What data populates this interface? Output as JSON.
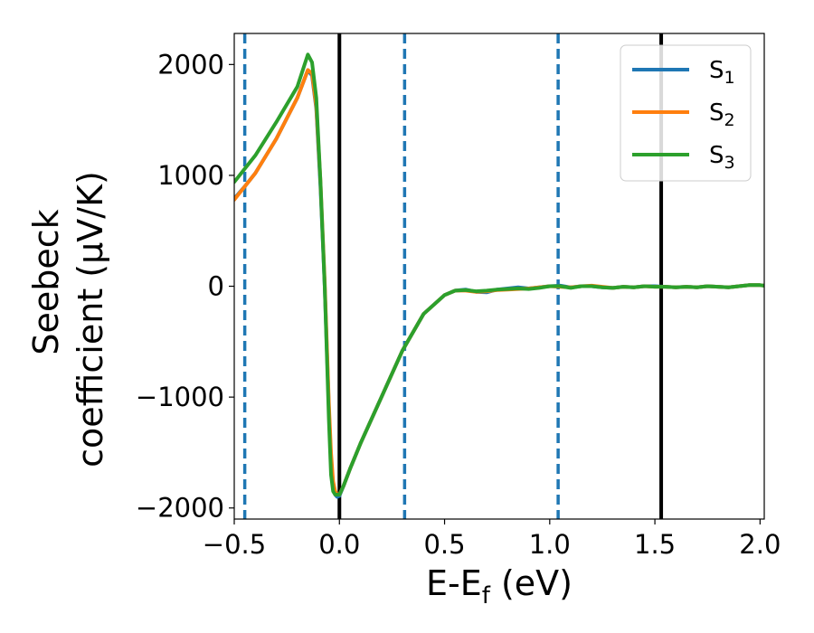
{
  "chart_data": {
    "type": "line",
    "xlabel": {
      "main": "E-E",
      "sub": "f",
      "unit": " (eV)"
    },
    "ylabel": {
      "line1": "Seebeck",
      "line2": "coefficient  (μV/K)"
    },
    "xlim": [
      -0.5,
      2.02
    ],
    "ylim": [
      -2100,
      2280
    ],
    "xticks": [
      -0.5,
      0.0,
      0.5,
      1.0,
      1.5,
      2.0
    ],
    "xtick_labels": [
      "−0.5",
      "0.0",
      "0.5",
      "1.0",
      "1.5",
      "2.0"
    ],
    "yticks": [
      -2000,
      -1000,
      0,
      1000,
      2000
    ],
    "ytick_labels": [
      "−2000",
      "−1000",
      "0",
      "1000",
      "2000"
    ],
    "grid": false,
    "legend_position": "top-right",
    "vlines": [
      {
        "x": -0.45,
        "style": "dashed",
        "color": "#1f77b4"
      },
      {
        "x": 0.0,
        "style": "solid",
        "color": "#000000"
      },
      {
        "x": 0.31,
        "style": "dashed",
        "color": "#1f77b4"
      },
      {
        "x": 1.04,
        "style": "dashed",
        "color": "#1f77b4"
      },
      {
        "x": 1.53,
        "style": "solid",
        "color": "#000000"
      }
    ],
    "series": [
      {
        "name": "S",
        "sub": "1",
        "color": "#1f77b4",
        "x": [
          -0.5,
          -0.45,
          -0.4,
          -0.3,
          -0.2,
          -0.15,
          -0.13,
          -0.11,
          -0.09,
          -0.07,
          -0.05,
          -0.04,
          -0.03,
          -0.02,
          -0.01,
          0.0,
          0.02,
          0.05,
          0.1,
          0.2,
          0.3,
          0.4,
          0.5,
          0.55,
          0.6,
          0.65,
          0.7,
          0.75,
          0.8,
          0.85,
          0.9,
          0.95,
          1.0,
          1.05,
          1.1,
          1.15,
          1.2,
          1.25,
          1.3,
          1.35,
          1.4,
          1.45,
          1.5,
          1.55,
          1.6,
          1.65,
          1.7,
          1.75,
          1.8,
          1.85,
          1.9,
          1.95,
          2.0,
          2.02
        ],
        "y": [
          790,
          900,
          1020,
          1330,
          1700,
          1950,
          1900,
          1600,
          900,
          0,
          -1100,
          -1550,
          -1800,
          -1880,
          -1900,
          -1890,
          -1800,
          -1650,
          -1420,
          -1000,
          -580,
          -250,
          -80,
          -40,
          -30,
          -50,
          -55,
          -30,
          -20,
          -10,
          -20,
          -10,
          0,
          5,
          -10,
          0,
          0,
          -10,
          -15,
          -5,
          -10,
          0,
          0,
          -5,
          -10,
          -5,
          -10,
          0,
          -5,
          -10,
          0,
          10,
          10,
          5
        ]
      },
      {
        "name": "S",
        "sub": "2",
        "color": "#ff7f0e",
        "x": [
          -0.5,
          -0.45,
          -0.4,
          -0.3,
          -0.2,
          -0.15,
          -0.13,
          -0.11,
          -0.09,
          -0.07,
          -0.05,
          -0.04,
          -0.03,
          -0.02,
          -0.01,
          0.0,
          0.02,
          0.05,
          0.1,
          0.2,
          0.3,
          0.4,
          0.5,
          0.55,
          0.6,
          0.65,
          0.7,
          0.75,
          0.8,
          0.85,
          0.9,
          0.95,
          1.0,
          1.05,
          1.1,
          1.15,
          1.2,
          1.25,
          1.3,
          1.35,
          1.4,
          1.45,
          1.5,
          1.55,
          1.6,
          1.65,
          1.7,
          1.75,
          1.8,
          1.85,
          1.9,
          1.95,
          2.0,
          2.02
        ],
        "y": [
          780,
          900,
          1020,
          1330,
          1700,
          1950,
          1920,
          1620,
          950,
          50,
          -1050,
          -1500,
          -1760,
          -1850,
          -1880,
          -1880,
          -1800,
          -1650,
          -1420,
          -1000,
          -580,
          -250,
          -80,
          -40,
          -40,
          -50,
          -45,
          -35,
          -30,
          -25,
          -20,
          -10,
          0,
          -5,
          -10,
          0,
          5,
          -5,
          -15,
          -5,
          -10,
          0,
          -5,
          -5,
          -10,
          -5,
          -10,
          0,
          -5,
          -10,
          0,
          10,
          10,
          5
        ]
      },
      {
        "name": "S",
        "sub": "3",
        "color": "#2ca02c",
        "x": [
          -0.5,
          -0.45,
          -0.4,
          -0.3,
          -0.2,
          -0.15,
          -0.13,
          -0.11,
          -0.09,
          -0.07,
          -0.05,
          -0.04,
          -0.03,
          -0.02,
          -0.01,
          0.0,
          0.02,
          0.05,
          0.1,
          0.2,
          0.3,
          0.4,
          0.5,
          0.55,
          0.6,
          0.65,
          0.7,
          0.75,
          0.8,
          0.85,
          0.9,
          0.95,
          1.0,
          1.05,
          1.1,
          1.15,
          1.2,
          1.25,
          1.3,
          1.35,
          1.4,
          1.45,
          1.5,
          1.55,
          1.6,
          1.65,
          1.7,
          1.75,
          1.8,
          1.85,
          1.9,
          1.95,
          2.0,
          2.02
        ],
        "y": [
          940,
          1060,
          1180,
          1480,
          1800,
          2090,
          2020,
          1700,
          950,
          0,
          -1200,
          -1700,
          -1850,
          -1880,
          -1880,
          -1880,
          -1800,
          -1650,
          -1420,
          -1000,
          -580,
          -250,
          -80,
          -40,
          -35,
          -45,
          -40,
          -30,
          -25,
          -20,
          -25,
          -15,
          0,
          0,
          -15,
          0,
          0,
          -10,
          -15,
          -5,
          -10,
          0,
          -5,
          -5,
          -10,
          -5,
          -10,
          0,
          -5,
          -10,
          0,
          10,
          10,
          5
        ]
      }
    ]
  }
}
